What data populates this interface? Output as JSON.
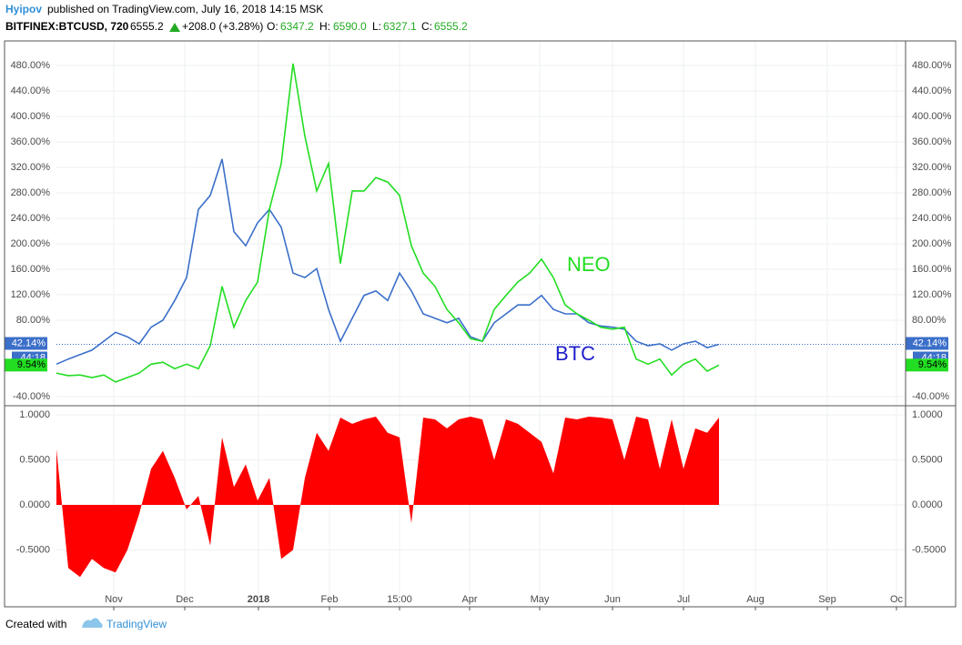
{
  "header": {
    "author": "Hyipov",
    "published": "published on TradingView.com, July 16, 2018 14:15 MSK",
    "symbol": "BITFINEX:BTCUSD, 720",
    "price": "6555.2",
    "change": "+208.0 (+3.28%)",
    "open_label": "O:",
    "open": "6347.2",
    "high_label": "H:",
    "high": "6590.0",
    "low_label": "L:",
    "low": "6327.1",
    "close_label": "C:",
    "close": "6555.2"
  },
  "footer": {
    "created": "Created with",
    "brand": "TradingView"
  },
  "chart_data": [
    {
      "type": "line",
      "ylim": [
        -52.86,
        518.57
      ],
      "yticks": [
        {
          "value": -40,
          "label": "-40.00%"
        },
        {
          "value": 80,
          "label": "80.00%"
        },
        {
          "value": 120,
          "label": "120.00%"
        },
        {
          "value": 160,
          "label": "160.00%"
        },
        {
          "value": 200,
          "label": "200.00%"
        },
        {
          "value": 240,
          "label": "240.00%"
        },
        {
          "value": 280,
          "label": "280.00%"
        },
        {
          "value": 320,
          "label": "320.00%"
        },
        {
          "value": 360,
          "label": "360.00%"
        },
        {
          "value": 400,
          "label": "400.00%"
        },
        {
          "value": 440,
          "label": "440.00%"
        },
        {
          "value": 480,
          "label": "480.00%"
        }
      ],
      "countdown": "44:18",
      "annotations": [
        {
          "text": "NEO",
          "color": "#22dd22"
        },
        {
          "text": "BTC",
          "color": "#1c1ccc"
        }
      ],
      "series": [
        {
          "name": "BTC",
          "color": "#3b6fc9",
          "last_label": "42.14%",
          "values": [
            11,
            19,
            26,
            33,
            47,
            61,
            54,
            43,
            69,
            80,
            111,
            147,
            254,
            276,
            333,
            219,
            197,
            233,
            254,
            226,
            154,
            147,
            161,
            97,
            47,
            83,
            119,
            126,
            111,
            154,
            126,
            90,
            83,
            76,
            83,
            54,
            47,
            76,
            90,
            104,
            104,
            119,
            97,
            90,
            90,
            76,
            71,
            69,
            66,
            47,
            40,
            43,
            33,
            43,
            47,
            37,
            42.14
          ]
        },
        {
          "name": "NEO",
          "color": "#22dd22",
          "last_label": "9.54%",
          "values": [
            -3,
            -7,
            -6,
            -10,
            -6,
            -17,
            -10,
            -3,
            11,
            14,
            4,
            11,
            4,
            40,
            133,
            69,
            111,
            140,
            254,
            326,
            483,
            369,
            283,
            326,
            169,
            283,
            283,
            304,
            297,
            276,
            197,
            154,
            133,
            97,
            76,
            51,
            47,
            97,
            119,
            140,
            154,
            176,
            147,
            104,
            90,
            80,
            69,
            66,
            69,
            19,
            11,
            19,
            -6,
            11,
            19,
            0,
            9.54
          ]
        }
      ]
    },
    {
      "type": "area",
      "color": "#ff0000",
      "ylim": [
        -1.131,
        1.0909
      ],
      "yticks": [
        {
          "value": -0.5,
          "label": "-0.5000"
        },
        {
          "value": 0,
          "label": "0.0000"
        },
        {
          "value": 0.5,
          "label": "0.5000"
        },
        {
          "value": 1,
          "label": "1.0000"
        }
      ],
      "x_labels": [
        "Nov",
        "Dec",
        "2018",
        "Feb",
        "15:00",
        "Apr",
        "May",
        "Jun",
        "Jul",
        "Aug",
        "Sep",
        "Oc"
      ],
      "values": [
        0.62,
        -0.7,
        -0.8,
        -0.6,
        -0.7,
        -0.75,
        -0.5,
        -0.1,
        0.4,
        0.6,
        0.3,
        -0.05,
        0.1,
        -0.45,
        0.75,
        0.2,
        0.45,
        0.05,
        0.3,
        -0.6,
        -0.5,
        0.3,
        0.8,
        0.6,
        0.97,
        0.9,
        0.95,
        0.98,
        0.8,
        0.75,
        -0.2,
        0.97,
        0.95,
        0.85,
        0.95,
        0.98,
        0.95,
        0.5,
        0.95,
        0.9,
        0.8,
        0.7,
        0.35,
        0.97,
        0.95,
        0.98,
        0.97,
        0.95,
        0.5,
        0.98,
        0.95,
        0.4,
        0.95,
        0.4,
        0.85,
        0.8,
        0.97
      ]
    }
  ]
}
